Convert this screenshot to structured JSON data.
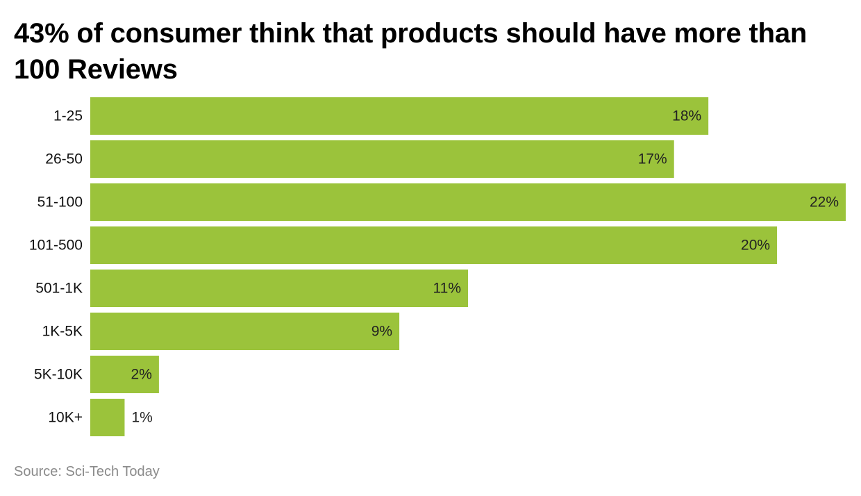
{
  "chart_data": {
    "type": "bar",
    "orientation": "horizontal",
    "title": "43% of consumer think that products should have more than 100 Reviews",
    "categories": [
      "1-25",
      "26-50",
      "51-100",
      "101-500",
      "501-1K",
      "1K-5K",
      "5K-10K",
      "10K+"
    ],
    "values": [
      18,
      17,
      22,
      20,
      11,
      9,
      2,
      1
    ],
    "value_labels": [
      "18%",
      "17%",
      "22%",
      "20%",
      "11%",
      "9%",
      "2%",
      "1%"
    ],
    "unit": "%",
    "xlim": [
      0,
      22
    ],
    "bar_color": "#9bc33b",
    "grid": false,
    "legend": "none",
    "xlabel": "",
    "ylabel": ""
  },
  "source": "Source: Sci-Tech Today"
}
